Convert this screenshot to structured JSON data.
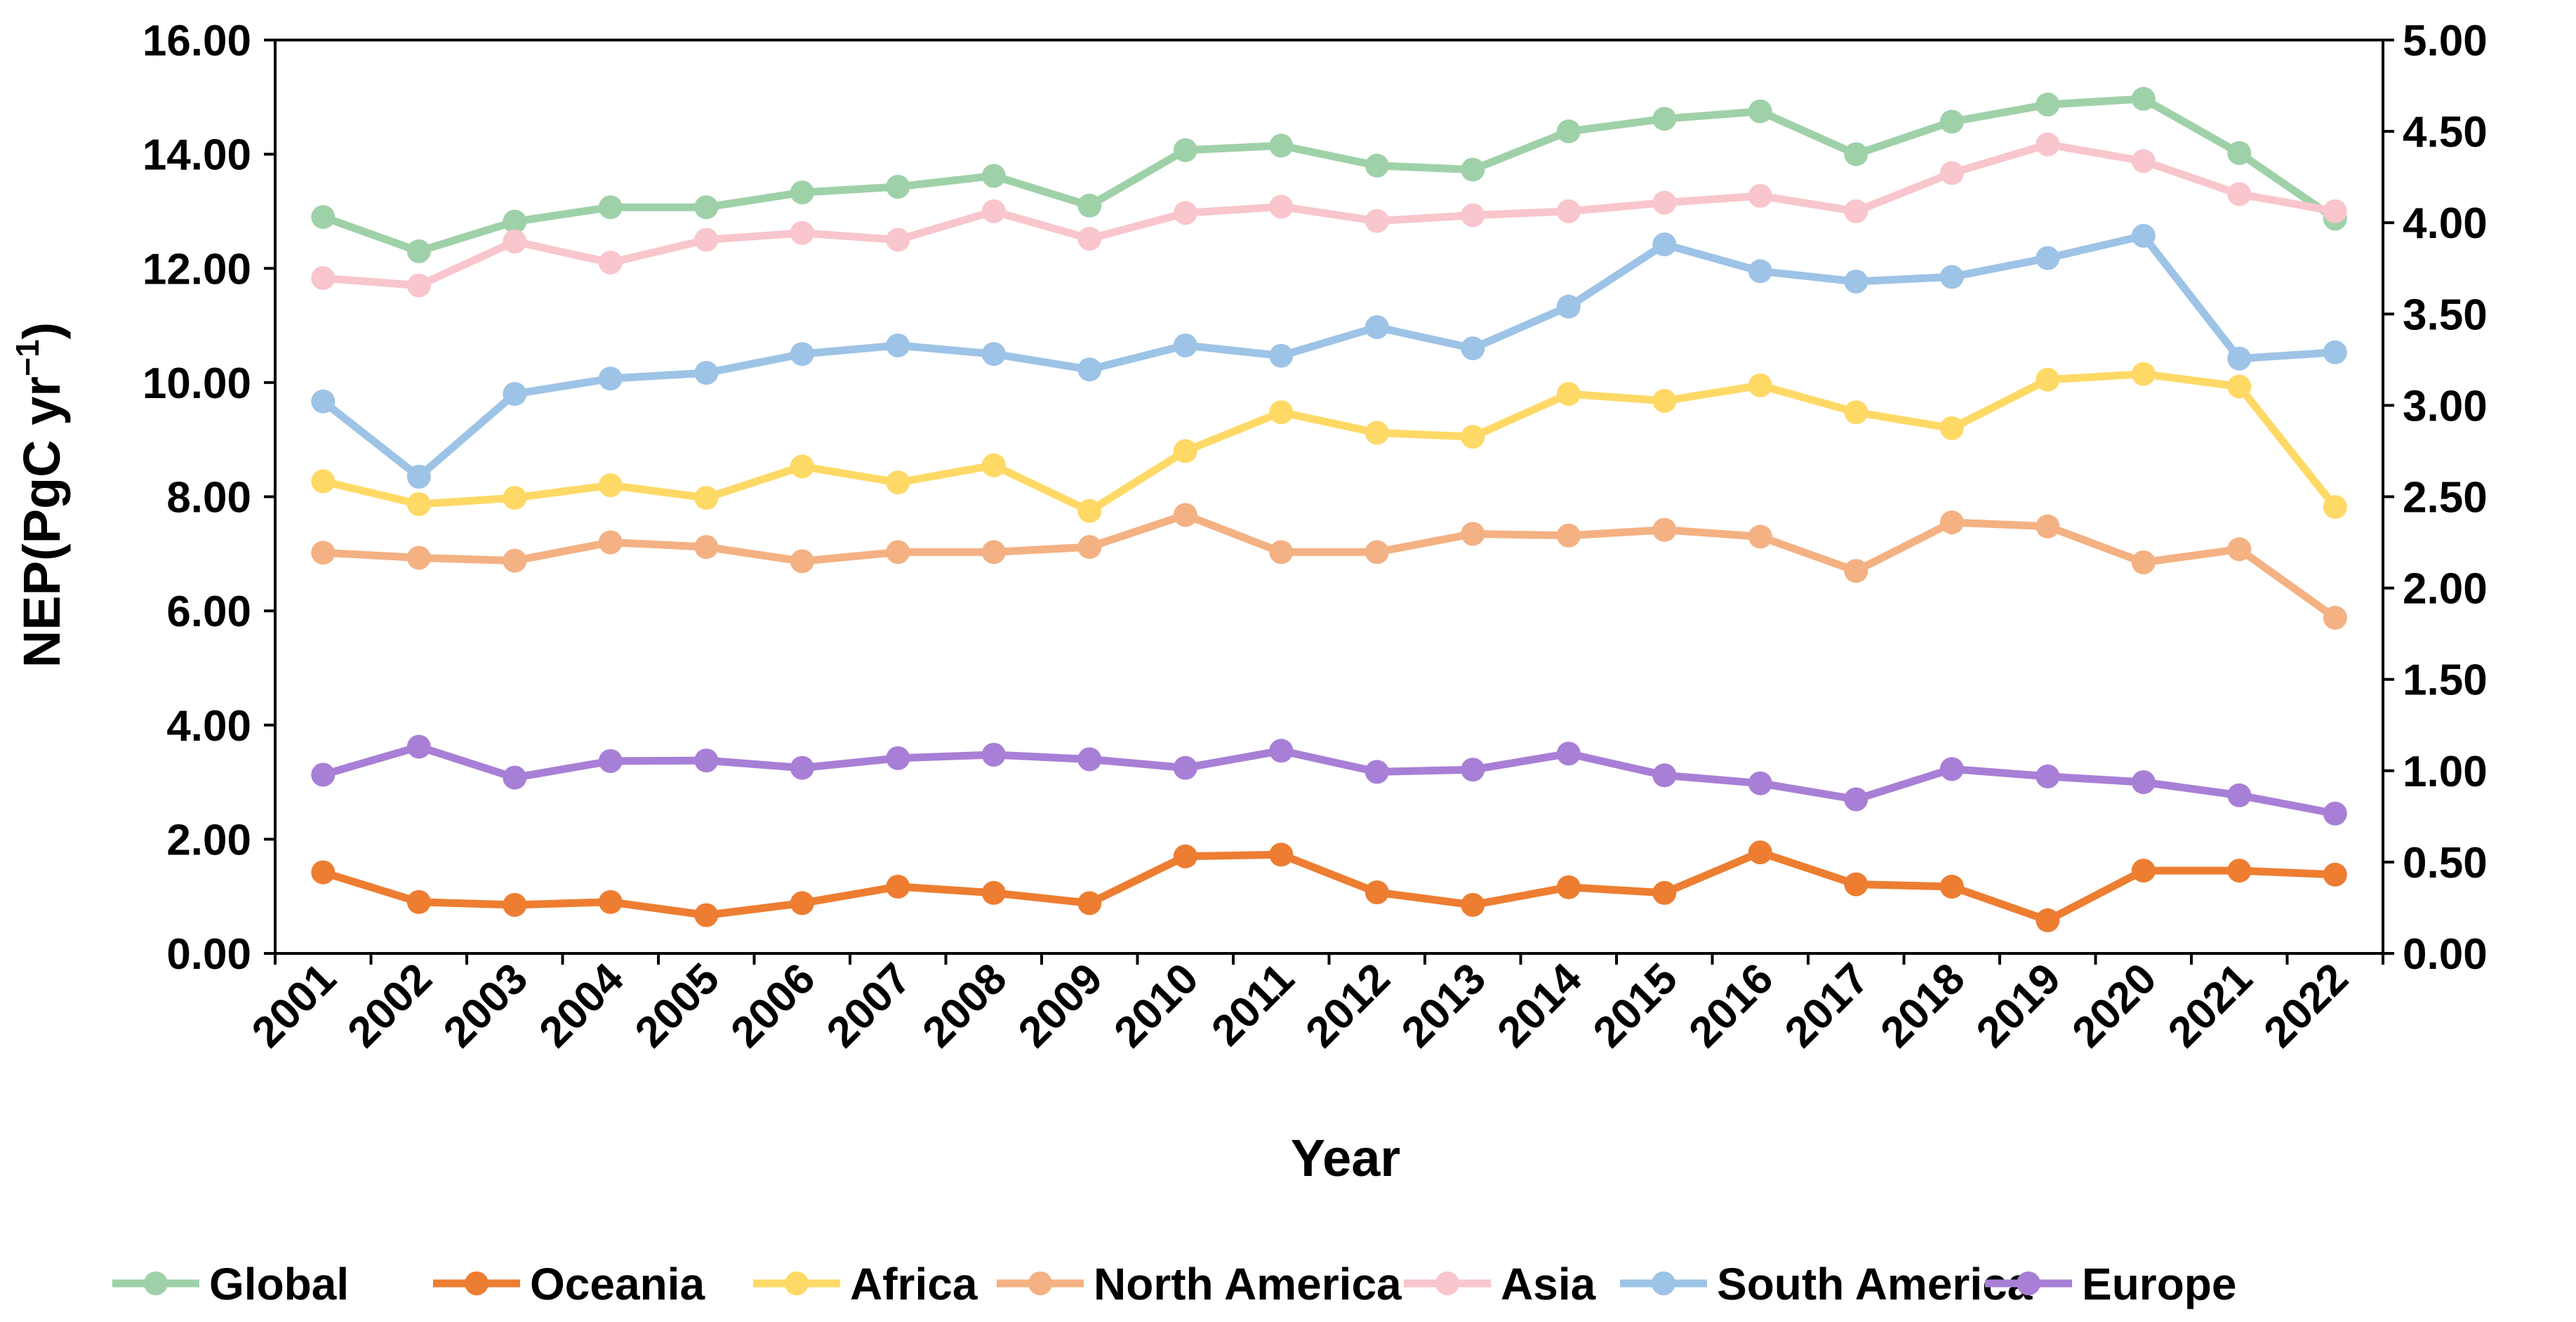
{
  "chart_data": {
    "type": "line",
    "title": "",
    "xlabel": "Year",
    "ylabel_main": "NEP(PgC yr",
    "ylabel_sup": "−1",
    "ylabel_close": ")",
    "ylim": [
      0,
      16
    ],
    "y2lim": [
      0,
      5
    ],
    "y_ticks": [
      "0.00",
      "2.00",
      "4.00",
      "6.00",
      "8.00",
      "10.00",
      "12.00",
      "14.00",
      "16.00"
    ],
    "y2_ticks": [
      "0.00",
      "0.50",
      "1.00",
      "1.50",
      "2.00",
      "2.50",
      "3.00",
      "3.50",
      "4.00",
      "4.50",
      "5.00"
    ],
    "legend_position": "bottom",
    "categories": [
      "2001",
      "2002",
      "2003",
      "2004",
      "2005",
      "2006",
      "2007",
      "2008",
      "2009",
      "2010",
      "2011",
      "2012",
      "2013",
      "2014",
      "2015",
      "2016",
      "2017",
      "2018",
      "2019",
      "2020",
      "2021",
      "2022"
    ],
    "series": [
      {
        "name": "Global",
        "color": "#9fd1a9",
        "axis": "left",
        "values": [
          12.9,
          12.3,
          12.82,
          13.07,
          13.07,
          13.33,
          13.43,
          13.62,
          13.1,
          14.07,
          14.15,
          13.8,
          13.73,
          14.4,
          14.62,
          14.75,
          14.0,
          14.57,
          14.87,
          14.97,
          14.02,
          12.87
        ]
      },
      {
        "name": "Oceania",
        "color": "#ed7d31",
        "axis": "left",
        "values": [
          1.42,
          0.9,
          0.85,
          0.9,
          0.67,
          0.88,
          1.17,
          1.06,
          0.88,
          1.7,
          1.73,
          1.07,
          0.85,
          1.16,
          1.06,
          1.77,
          1.21,
          1.17,
          0.58,
          1.45,
          1.45,
          1.38
        ]
      },
      {
        "name": "Africa",
        "color": "#ffd966",
        "axis": "left",
        "values": [
          8.27,
          7.87,
          7.98,
          8.2,
          7.98,
          8.53,
          8.25,
          8.55,
          7.75,
          8.8,
          9.48,
          9.12,
          9.05,
          9.8,
          9.68,
          9.95,
          9.48,
          9.2,
          10.05,
          10.15,
          9.93,
          7.82
        ]
      },
      {
        "name": "North America",
        "color": "#f4b183",
        "axis": "left",
        "values": [
          7.02,
          6.93,
          6.88,
          7.2,
          7.12,
          6.87,
          7.03,
          7.03,
          7.12,
          7.68,
          7.03,
          7.03,
          7.35,
          7.32,
          7.42,
          7.3,
          6.7,
          7.55,
          7.48,
          6.85,
          7.08,
          5.88
        ]
      },
      {
        "name": "Asia",
        "color": "#f8c6cc",
        "axis": "left",
        "values": [
          11.83,
          11.7,
          12.47,
          12.1,
          12.5,
          12.62,
          12.5,
          13.0,
          12.52,
          12.97,
          13.08,
          12.83,
          12.93,
          13.0,
          13.15,
          13.27,
          13.0,
          13.67,
          14.17,
          13.88,
          13.3,
          13.0
        ]
      },
      {
        "name": "South America",
        "color": "#9dc3e6",
        "axis": "left",
        "values": [
          9.67,
          8.35,
          9.8,
          10.07,
          10.17,
          10.5,
          10.65,
          10.5,
          10.23,
          10.65,
          10.47,
          10.97,
          10.6,
          11.33,
          12.42,
          11.95,
          11.77,
          11.85,
          12.18,
          12.57,
          10.42,
          10.53
        ]
      },
      {
        "name": "Europe",
        "color": "#a87fd6",
        "axis": "left",
        "values": [
          3.13,
          3.62,
          3.08,
          3.37,
          3.38,
          3.25,
          3.42,
          3.48,
          3.4,
          3.25,
          3.55,
          3.18,
          3.22,
          3.5,
          3.12,
          2.98,
          2.7,
          3.23,
          3.1,
          3.0,
          2.77,
          2.45
        ]
      }
    ]
  }
}
